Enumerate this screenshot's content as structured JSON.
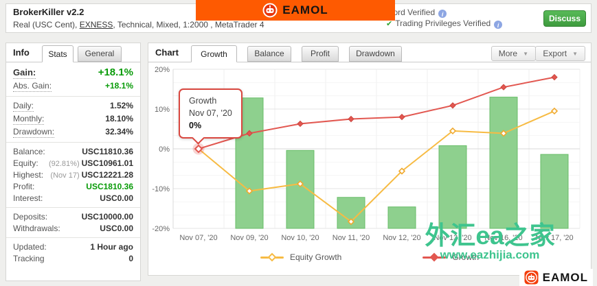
{
  "page": {
    "background": "#efefed"
  },
  "header": {
    "title": "BrokerKiller v2.2",
    "subtitle": {
      "prefix": "Real (USC Cent), ",
      "broker": "EXNESS",
      "suffix": ", Technical, Mixed, 1:2000 , MetaTrader 4"
    },
    "verifications": [
      {
        "label": "Track Record Verified"
      },
      {
        "label": "Trading Privileges Verified"
      }
    ],
    "discuss_label": "Discuss",
    "banner": {
      "logo_text": "EAMOL",
      "color": "#fe5a01"
    }
  },
  "info_panel": {
    "title": "Info",
    "tabs": [
      {
        "label": "Stats",
        "active": true
      },
      {
        "label": "General",
        "active": false
      }
    ],
    "groups": [
      {
        "rows": [
          {
            "label": "Gain:",
            "value": "+18.1%",
            "green": true,
            "big": true,
            "u": true
          },
          {
            "label": "Abs. Gain:",
            "value": "+18.1%",
            "green": true,
            "u": true
          }
        ]
      },
      {
        "rows": [
          {
            "label": "Daily:",
            "value": "1.52%",
            "u": true
          },
          {
            "label": "Monthly:",
            "value": "18.10%",
            "u": true
          },
          {
            "label": "Drawdown:",
            "value": "32.34%",
            "u": true
          }
        ]
      },
      {
        "rows": [
          {
            "label": "Balance:",
            "value": "USC11810.36"
          },
          {
            "label": "Equity:",
            "pre": "(92.81%)",
            "value": "USC10961.01"
          },
          {
            "label": "Highest:",
            "pre": "(Nov 17)",
            "value": "USC12221.28"
          },
          {
            "label": "Profit:",
            "value": "USC1810.36",
            "green": true
          },
          {
            "label": "Interest:",
            "value": "USC0.00"
          }
        ]
      },
      {
        "rows": [
          {
            "label": "Deposits:",
            "value": "USC10000.00"
          },
          {
            "label": "Withdrawals:",
            "value": "USC0.00"
          }
        ]
      },
      {
        "rows": [
          {
            "label": "Updated:",
            "value": "1 Hour ago"
          },
          {
            "label": "Tracking",
            "value": "0"
          }
        ]
      }
    ]
  },
  "chart_panel": {
    "title": "Chart",
    "tabs": [
      {
        "label": "Growth",
        "active": true
      },
      {
        "label": "Balance",
        "active": false
      },
      {
        "label": "Profit",
        "active": false
      },
      {
        "label": "Drawdown",
        "active": false
      }
    ],
    "more_label": "More",
    "export_label": "Export",
    "tooltip": {
      "series": "Growth",
      "date": "Nov 07, '20",
      "value": "0%"
    }
  },
  "chart_data": {
    "type": "mixed",
    "title": "Growth",
    "categories": [
      "Nov 07, '20",
      "Nov 09, '20",
      "Nov 10, '20",
      "Nov 11, '20",
      "Nov 12, '20",
      "Nov 13, '20",
      "Nov 16, '20",
      "Nov 17, '20"
    ],
    "series": [
      {
        "name": "Growth",
        "type": "line",
        "color": "#e25750",
        "marker_stroke": "#cc453e",
        "values": [
          0,
          3.9,
          6.3,
          7.5,
          8.0,
          10.9,
          15.5,
          18.0
        ]
      },
      {
        "name": "Equity Growth",
        "type": "line",
        "color": "#f7bb43",
        "marker_stroke": "#f0a92d",
        "values": [
          0,
          -10.6,
          -8.8,
          -18.3,
          -5.6,
          4.5,
          3.9,
          9.5
        ]
      },
      {
        "name": "Daily Bars",
        "type": "bar",
        "color": "#8ed08e",
        "border": "#68bd68",
        "values": [
          null,
          12.8,
          -0.4,
          -12.2,
          -14.6,
          0.8,
          13.0,
          -1.4
        ]
      }
    ],
    "ylim": [
      -20,
      20
    ],
    "yticks": [
      {
        "v": 20,
        "label": "20%"
      },
      {
        "v": 10,
        "label": "10%"
      },
      {
        "v": 0,
        "label": "0%"
      },
      {
        "v": -10,
        "label": "-10%"
      },
      {
        "v": -20,
        "label": "-20%"
      }
    ],
    "grid": true,
    "legend_position": "bottom",
    "legend": [
      {
        "label": "Equity Growth",
        "color": "#f7bb43",
        "hollow": true
      },
      {
        "label": "Growth",
        "color": "#e25750",
        "hollow": false
      }
    ],
    "highlight": {
      "series": "Growth",
      "index": 0
    }
  },
  "watermark": {
    "line1": "外汇ea之家",
    "line2": "www.eazhijia.com",
    "color": "#3ec48e"
  },
  "footer_logo": {
    "text": "EAMOL"
  }
}
